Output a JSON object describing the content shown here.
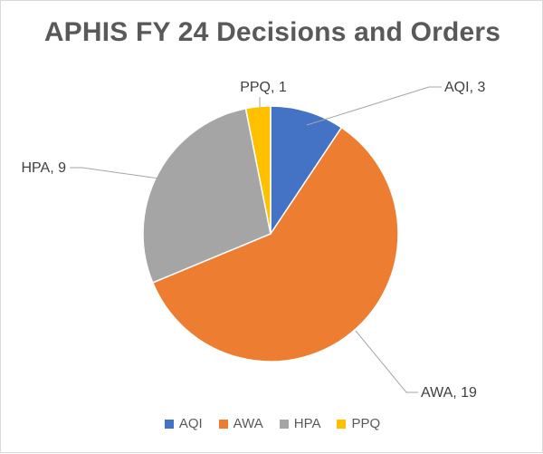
{
  "chart_data": {
    "type": "pie",
    "title": "APHIS FY 24 Decisions and Orders",
    "categories": [
      "AQI",
      "AWA",
      "HPA",
      "PPQ"
    ],
    "values": [
      3,
      19,
      9,
      1
    ],
    "colors": [
      "#4472C4",
      "#ED7D31",
      "#A5A5A5",
      "#FFC000"
    ],
    "data_labels": [
      "AQI, 3",
      "AWA, 19",
      "HPA, 9",
      "PPQ, 1"
    ],
    "legend_position": "bottom",
    "start_angle_deg": 0,
    "direction": "clockwise"
  }
}
